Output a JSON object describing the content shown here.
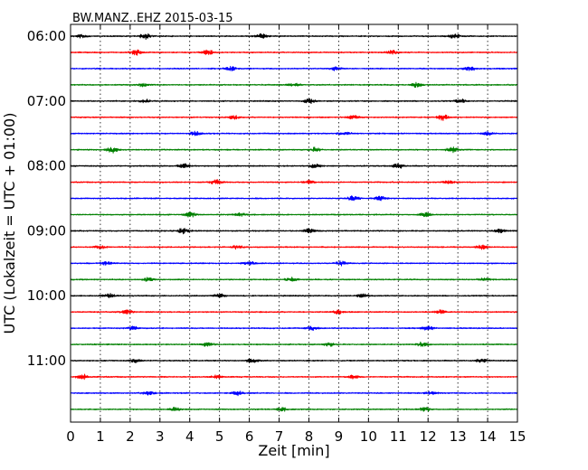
{
  "chart_data": {
    "type": "line",
    "title": "BW.MANZ..EHZ 2015-03-15",
    "xlabel": "Zeit  [min]",
    "ylabel": "UTC (Lokalzeit = UTC + 01:00)",
    "xlim": [
      0,
      15
    ],
    "x_ticks": [
      "0",
      "1",
      "2",
      "3",
      "4",
      "5",
      "6",
      "7",
      "8",
      "9",
      "10",
      "11",
      "12",
      "13",
      "14",
      "15"
    ],
    "y_ticks": [
      "06:00",
      "07:00",
      "08:00",
      "09:00",
      "10:00",
      "11:00"
    ],
    "grid": "x-dotted",
    "trace_minutes": 15,
    "colors": [
      "#000000",
      "#ff0000",
      "#0000ff",
      "#008000"
    ],
    "series": [
      {
        "start": "06:00",
        "color": "#000000",
        "bursts": [
          [
            0.4,
            0.6
          ],
          [
            2.5,
            1.0
          ],
          [
            6.4,
            0.9
          ],
          [
            12.9,
            0.8
          ]
        ]
      },
      {
        "start": "06:15",
        "color": "#ff0000",
        "bursts": [
          [
            2.2,
            0.9
          ],
          [
            4.6,
            1.0
          ],
          [
            10.8,
            0.7
          ]
        ]
      },
      {
        "start": "06:30",
        "color": "#0000ff",
        "bursts": [
          [
            5.4,
            0.7
          ],
          [
            8.9,
            0.6
          ],
          [
            13.4,
            0.8
          ]
        ]
      },
      {
        "start": "06:45",
        "color": "#008000",
        "bursts": [
          [
            2.4,
            0.6
          ],
          [
            7.5,
            0.6
          ],
          [
            11.6,
            0.8
          ]
        ]
      },
      {
        "start": "07:00",
        "color": "#000000",
        "bursts": [
          [
            2.5,
            0.6
          ],
          [
            8.0,
            0.9
          ],
          [
            13.1,
            0.6
          ]
        ]
      },
      {
        "start": "07:15",
        "color": "#ff0000",
        "bursts": [
          [
            5.5,
            0.6
          ],
          [
            9.5,
            0.7
          ],
          [
            12.5,
            1.0
          ]
        ]
      },
      {
        "start": "07:30",
        "color": "#0000ff",
        "bursts": [
          [
            4.2,
            0.7
          ],
          [
            9.2,
            0.6
          ],
          [
            14.0,
            0.6
          ]
        ]
      },
      {
        "start": "07:45",
        "color": "#008000",
        "bursts": [
          [
            1.4,
            1.0
          ],
          [
            8.2,
            0.7
          ],
          [
            12.8,
            0.9
          ]
        ]
      },
      {
        "start": "08:00",
        "color": "#000000",
        "bursts": [
          [
            3.8,
            0.7
          ],
          [
            8.2,
            0.7
          ],
          [
            11.0,
            0.8
          ]
        ]
      },
      {
        "start": "08:15",
        "color": "#ff0000",
        "bursts": [
          [
            4.9,
            0.8
          ],
          [
            8.0,
            0.6
          ],
          [
            12.7,
            0.7
          ]
        ]
      },
      {
        "start": "08:30",
        "color": "#0000ff",
        "bursts": [
          [
            9.5,
            0.8
          ],
          [
            10.4,
            0.7
          ]
        ]
      },
      {
        "start": "08:45",
        "color": "#008000",
        "bursts": [
          [
            4.0,
            0.9
          ],
          [
            5.7,
            0.6
          ],
          [
            11.9,
            0.7
          ]
        ]
      },
      {
        "start": "09:00",
        "color": "#000000",
        "bursts": [
          [
            3.8,
            1.0
          ],
          [
            8.0,
            0.7
          ],
          [
            14.4,
            0.6
          ]
        ]
      },
      {
        "start": "09:15",
        "color": "#ff0000",
        "bursts": [
          [
            1.0,
            0.7
          ],
          [
            5.6,
            0.6
          ],
          [
            13.8,
            0.7
          ]
        ]
      },
      {
        "start": "09:30",
        "color": "#0000ff",
        "bursts": [
          [
            1.2,
            0.6
          ],
          [
            6.0,
            0.6
          ],
          [
            9.1,
            0.8
          ]
        ]
      },
      {
        "start": "09:45",
        "color": "#008000",
        "bursts": [
          [
            2.6,
            0.6
          ],
          [
            7.4,
            0.7
          ],
          [
            13.9,
            0.6
          ]
        ]
      },
      {
        "start": "10:00",
        "color": "#000000",
        "bursts": [
          [
            1.3,
            0.8
          ],
          [
            5.0,
            0.7
          ],
          [
            9.8,
            0.6
          ]
        ]
      },
      {
        "start": "10:15",
        "color": "#ff0000",
        "bursts": [
          [
            1.9,
            0.8
          ],
          [
            9.0,
            0.6
          ],
          [
            12.4,
            0.7
          ]
        ]
      },
      {
        "start": "10:30",
        "color": "#0000ff",
        "bursts": [
          [
            2.1,
            0.6
          ],
          [
            8.1,
            0.6
          ],
          [
            12.0,
            0.7
          ]
        ]
      },
      {
        "start": "10:45",
        "color": "#008000",
        "bursts": [
          [
            4.6,
            0.7
          ],
          [
            8.7,
            0.6
          ],
          [
            11.8,
            0.8
          ]
        ]
      },
      {
        "start": "11:00",
        "color": "#000000",
        "bursts": [
          [
            2.2,
            0.6
          ],
          [
            6.1,
            0.7
          ],
          [
            13.8,
            0.7
          ]
        ]
      },
      {
        "start": "11:15",
        "color": "#ff0000",
        "bursts": [
          [
            0.4,
            1.0
          ],
          [
            4.9,
            0.6
          ],
          [
            9.5,
            0.6
          ]
        ]
      },
      {
        "start": "11:30",
        "color": "#0000ff",
        "bursts": [
          [
            2.6,
            0.7
          ],
          [
            5.6,
            0.7
          ],
          [
            12.1,
            0.6
          ]
        ]
      },
      {
        "start": "11:45",
        "color": "#008000",
        "bursts": [
          [
            3.5,
            0.7
          ],
          [
            7.1,
            0.6
          ],
          [
            11.9,
            0.8
          ]
        ]
      }
    ]
  }
}
